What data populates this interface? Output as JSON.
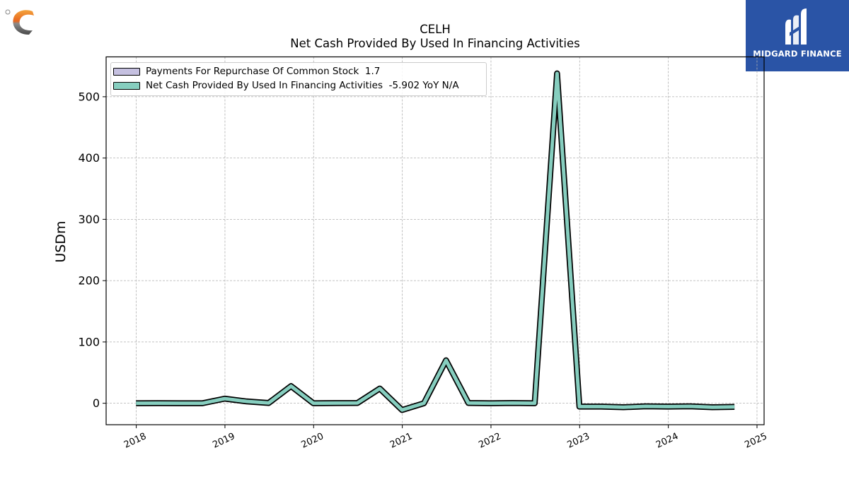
{
  "title_line1": "CELH",
  "title_line2": "Net Cash Provided By Used In Financing Activities",
  "brand": {
    "name": "MIDGARD FINANCE",
    "box_color": "#2a54a6"
  },
  "chart_data": {
    "type": "line",
    "title": "CELH\nNet Cash Provided By Used In Financing Activities",
    "ylabel": "USDm",
    "xlabel": "",
    "x_ticks": [
      "2018",
      "2019",
      "2020",
      "2021",
      "2022",
      "2023",
      "2024",
      "2025"
    ],
    "y_ticks": [
      "0",
      "100",
      "200",
      "300",
      "400",
      "500"
    ],
    "ylim": [
      -35,
      565
    ],
    "xlim": [
      2017.66,
      2025.08
    ],
    "grid": true,
    "legend_placement": "top-left",
    "series": [
      {
        "name": "Payments For Repurchase Of Common Stock",
        "legend_value": "1.7",
        "color": "#c5c0e0",
        "points": []
      },
      {
        "name": "Net Cash Provided By Used In Financing Activities",
        "legend_value": "-5.902 YoY N/A",
        "color": "#86cebf",
        "points": [
          {
            "x": "2017-12-31",
            "y": 0.0
          },
          {
            "x": "2018-03-31",
            "y": 0.1
          },
          {
            "x": "2018-06-30",
            "y": 0.0
          },
          {
            "x": "2018-09-30",
            "y": 0.0
          },
          {
            "x": "2018-12-31",
            "y": 7.5
          },
          {
            "x": "2019-03-31",
            "y": 3.0
          },
          {
            "x": "2019-06-30",
            "y": 0.5
          },
          {
            "x": "2019-09-30",
            "y": 28.0
          },
          {
            "x": "2019-12-31",
            "y": 0.0
          },
          {
            "x": "2020-03-31",
            "y": 0.3
          },
          {
            "x": "2020-06-30",
            "y": 0.5
          },
          {
            "x": "2020-09-30",
            "y": 24.0
          },
          {
            "x": "2020-12-31",
            "y": -11.0
          },
          {
            "x": "2021-03-31",
            "y": 0.0
          },
          {
            "x": "2021-06-30",
            "y": 70.0
          },
          {
            "x": "2021-09-30",
            "y": 0.5
          },
          {
            "x": "2021-12-31",
            "y": 0.0
          },
          {
            "x": "2022-03-31",
            "y": 0.5
          },
          {
            "x": "2022-06-30",
            "y": 0.0
          },
          {
            "x": "2022-09-30",
            "y": 538.0
          },
          {
            "x": "2022-12-31",
            "y": -5.5
          },
          {
            "x": "2023-03-31",
            "y": -5.5
          },
          {
            "x": "2023-06-30",
            "y": -6.5
          },
          {
            "x": "2023-09-30",
            "y": -5.0
          },
          {
            "x": "2023-12-31",
            "y": -5.5
          },
          {
            "x": "2024-03-31",
            "y": -5.0
          },
          {
            "x": "2024-06-30",
            "y": -6.5
          },
          {
            "x": "2024-09-30",
            "y": -5.9
          }
        ]
      }
    ]
  }
}
